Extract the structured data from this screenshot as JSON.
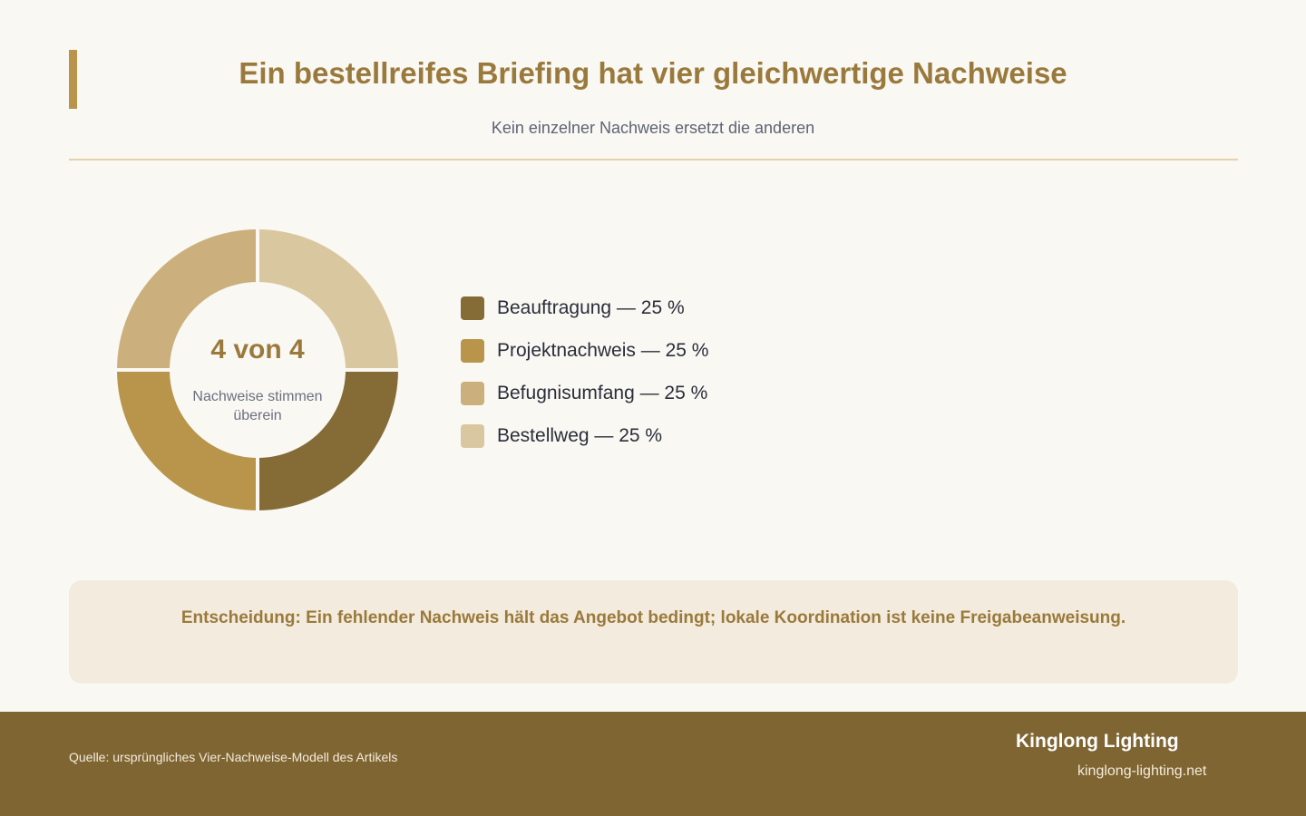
{
  "header": {
    "title": "Ein bestellreifes Briefing hat vier gleichwertige Nachweise",
    "subtitle": "Kein einzelner Nachweis ersetzt die anderen"
  },
  "colors": {
    "accent": "#b8954a",
    "title": "#9a7a3c",
    "footer_bg": "#7f6532",
    "panel_bg": "#f3ebdd"
  },
  "chart_data": {
    "type": "pie",
    "variant": "donut",
    "categories": [
      "Beauftragung",
      "Projektnachweis",
      "Befugnisumfang",
      "Bestellweg"
    ],
    "values": [
      25,
      25,
      25,
      25
    ],
    "unit": "%",
    "colors": [
      "#856c37",
      "#b8954a",
      "#cbb07e",
      "#d9c79f"
    ],
    "legend_position": "right",
    "legend_labels": [
      "Beauftragung — 25 %",
      "Projektnachweis — 25 %",
      "Befugnisumfang — 25 %",
      "Bestellweg — 25 %"
    ],
    "center_value": "4 von 4",
    "center_caption": "Nachweise stimmen überein"
  },
  "decision": {
    "text": "Entscheidung: Ein fehlender Nachweis hält das Angebot bedingt; lokale Koordination ist keine Freigabeanweisung."
  },
  "footer": {
    "source": "Quelle: ursprüngliches Vier-Nachweise-Modell des Artikels",
    "brand": "Kinglong Lighting",
    "url": "kinglong-lighting.net"
  }
}
